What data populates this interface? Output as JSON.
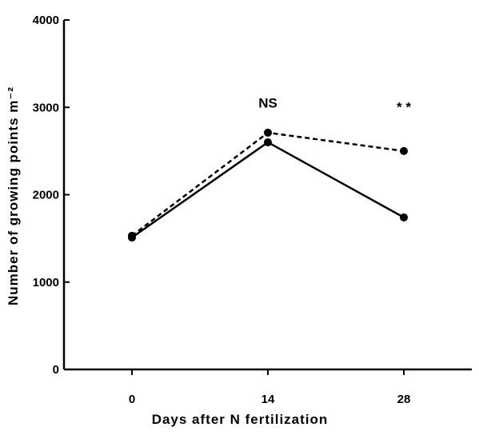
{
  "chart_data": {
    "type": "line",
    "title": "",
    "xlabel": "Days after N fertilization",
    "ylabel": "Number of growing points m⁻²",
    "x": [
      0,
      14,
      28
    ],
    "x_tick_labels": [
      "0",
      "14",
      "28"
    ],
    "xlim": [
      -7,
      35
    ],
    "ylim": [
      0,
      4000
    ],
    "y_ticks": [
      0,
      1000,
      2000,
      3000,
      4000
    ],
    "y_tick_labels": [
      "0",
      "1000",
      "2000",
      "3000",
      "4000"
    ],
    "grid": false,
    "series": [
      {
        "style": "solid",
        "values": [
          1510,
          2600,
          1740
        ]
      },
      {
        "style": "dashed",
        "values": [
          1530,
          2710,
          2500
        ]
      }
    ],
    "annotations": [
      {
        "text": "NS",
        "x": 14,
        "y": 3000
      },
      {
        "text": "* *",
        "x": 28,
        "y": 2950
      }
    ]
  }
}
